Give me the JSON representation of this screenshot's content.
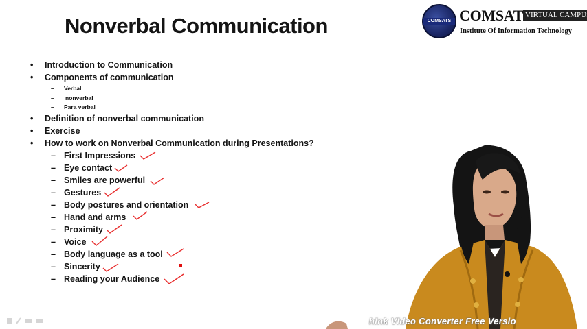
{
  "slide": {
    "title": "Nonverbal Communication",
    "bullets": [
      {
        "marker": "•",
        "text": "Introduction to Communication"
      },
      {
        "marker": "•",
        "text": "Components of communication"
      },
      {
        "marker": "•",
        "text": "Definition of nonverbal communication"
      },
      {
        "marker": "•",
        "text": "Exercise"
      },
      {
        "marker": "•",
        "text": "How to work on Nonverbal Communication during Presentations?"
      }
    ],
    "components": [
      {
        "marker": "–",
        "text": "Verbal"
      },
      {
        "marker": "–",
        "text": "nonverbal"
      },
      {
        "marker": "–",
        "text": "Para verbal"
      }
    ],
    "tips": [
      {
        "marker": "–",
        "text": "First Impressions",
        "checked": true
      },
      {
        "marker": "–",
        "text": "Eye contact",
        "checked": true
      },
      {
        "marker": "–",
        "text": "Smiles are powerful",
        "checked": true
      },
      {
        "marker": "–",
        "text": "Gestures",
        "checked": true
      },
      {
        "marker": "–",
        "text": "Body postures and orientation",
        "checked": true
      },
      {
        "marker": "–",
        "text": "Hand and arms",
        "checked": true
      },
      {
        "marker": "–",
        "text": "Proximity",
        "checked": true
      },
      {
        "marker": "–",
        "text": "Voice",
        "checked": true
      },
      {
        "marker": "–",
        "text": "Body language as a tool",
        "checked": true
      },
      {
        "marker": "–",
        "text": "Sincerity",
        "checked": true
      },
      {
        "marker": "–",
        "text": "Reading your Audience",
        "checked": true
      }
    ],
    "annotation_color": "#e83030"
  },
  "logo": {
    "seal_text": "COMSATS",
    "name": "COMSATS",
    "badge": "VIRTUAL CAMPUS",
    "subtitle": "Institute Of Information Technology"
  },
  "watermark": "hink Video Converter Free Versio",
  "colors": {
    "jacket": "#c98a1e",
    "background": "#ffffff"
  }
}
